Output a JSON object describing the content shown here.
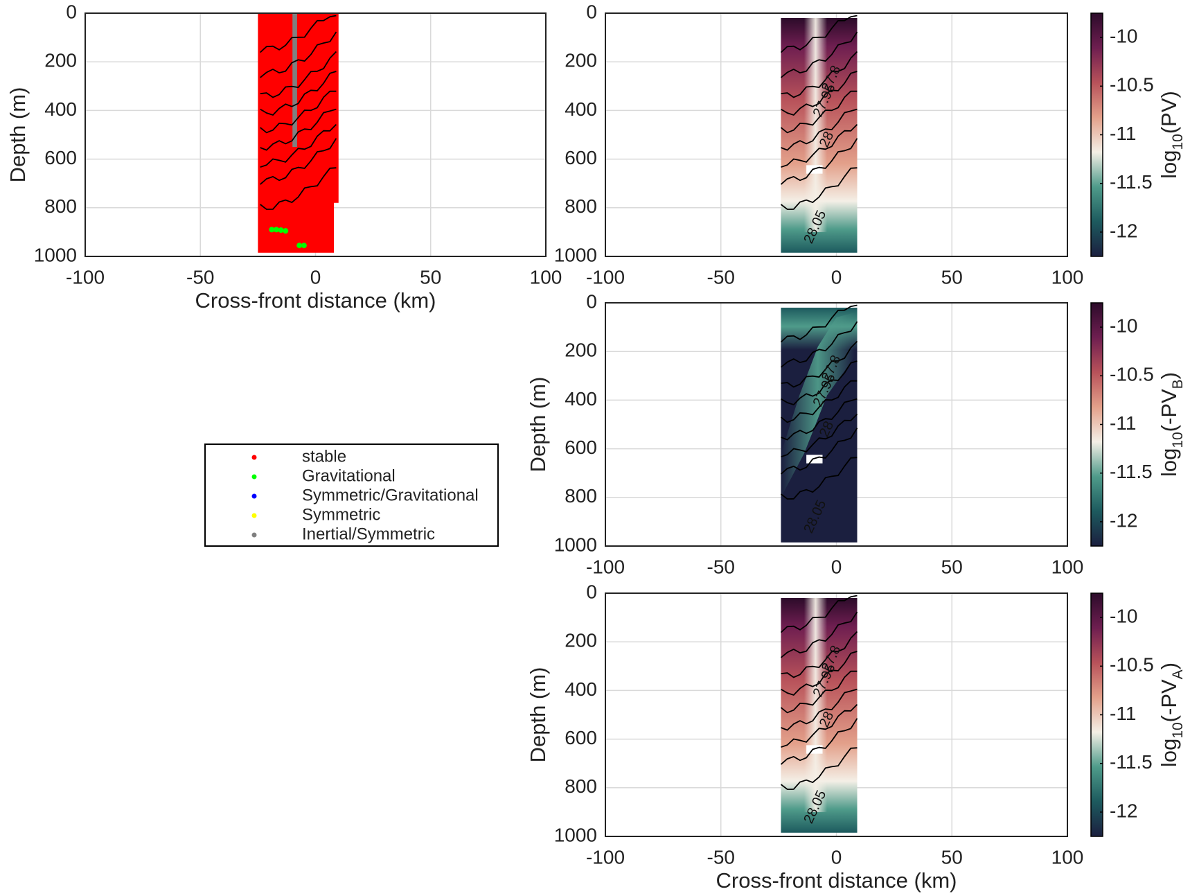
{
  "chart_data": [
    {
      "type": "scatter",
      "xlim": [
        -100,
        100
      ],
      "ylim": [
        0,
        1000
      ],
      "yreverse": true,
      "xticks": [
        -100,
        -50,
        0,
        50,
        100
      ],
      "yticks": [
        0,
        200,
        400,
        600,
        800,
        1000
      ],
      "grid": true,
      "xlabel": "Cross-front distance (km)",
      "ylabel": "Depth (m)",
      "legend": "below",
      "series": [
        {
          "name": "stable",
          "color": "#ff0000",
          "shape": "region",
          "x": [
            -25,
            10,
            10,
            8,
            8,
            -25
          ],
          "y": [
            0,
            0,
            780,
            780,
            985,
            985
          ]
        },
        {
          "name": "Gravitational",
          "color": "#00ff00",
          "x": [
            -19,
            -17,
            -15,
            -13,
            -7,
            -5
          ],
          "y": [
            890,
            890,
            892,
            895,
            955,
            955
          ]
        },
        {
          "name": "Symmetric/Gravitational",
          "color": "#0000ff",
          "x": [],
          "y": []
        },
        {
          "name": "Symmetric",
          "color": "#ffff00",
          "x": [],
          "y": []
        },
        {
          "name": "Inertial/Symmetric",
          "color": "#808080",
          "shape": "region",
          "x": [
            -10,
            -8,
            -8,
            -10
          ],
          "y": [
            0,
            0,
            550,
            550
          ]
        }
      ]
    },
    {
      "type": "heatmap",
      "xlim": [
        -100,
        100
      ],
      "ylim": [
        0,
        1000
      ],
      "yreverse": true,
      "xticks": [
        -100,
        -50,
        0,
        50,
        100
      ],
      "yticks": [
        0,
        200,
        400,
        600,
        800,
        1000
      ],
      "grid": true,
      "field_x": [
        -24,
        9
      ],
      "field_depth": [
        20,
        985
      ],
      "clim": [
        -12.25,
        -9.75
      ],
      "cticks": [
        -12,
        -11.5,
        -11,
        -10.5,
        -10
      ],
      "colormap": [
        "#1b1f3f",
        "#1d5a5e",
        "#4f9b8a",
        "#f4efe6",
        "#e3a08a",
        "#b8525a",
        "#6e1e50",
        "#2c0b2a"
      ],
      "colorbar_label": [
        {
          "text": "log"
        },
        {
          "text": "10",
          "sub": true
        },
        {
          "text": "(PV)"
        }
      ],
      "contour_labels": [
        "27.8",
        "27.95",
        "28",
        "28.05"
      ]
    },
    {
      "type": "heatmap",
      "xlim": [
        -100,
        100
      ],
      "ylim": [
        0,
        1000
      ],
      "yreverse": true,
      "xticks": [
        -100,
        -50,
        0,
        50,
        100
      ],
      "yticks": [
        0,
        200,
        400,
        600,
        800,
        1000
      ],
      "grid": true,
      "ylabel": "Depth (m)",
      "field_x": [
        -24,
        9
      ],
      "field_depth": [
        20,
        985
      ],
      "clim": [
        -12.25,
        -9.75
      ],
      "cticks": [
        -12,
        -11.5,
        -11,
        -10.5,
        -10
      ],
      "colormap": [
        "#1b1f3f",
        "#1d5a5e",
        "#4f9b8a",
        "#f4efe6",
        "#e3a08a",
        "#b8525a",
        "#6e1e50",
        "#2c0b2a"
      ],
      "colorbar_label": [
        {
          "text": "log"
        },
        {
          "text": "10",
          "sub": true
        },
        {
          "text": "(-PV"
        },
        {
          "text": "B",
          "sub": true
        },
        {
          "text": ")"
        }
      ],
      "contour_labels": [
        "27.8",
        "27.95",
        "28",
        "28.05"
      ]
    },
    {
      "type": "heatmap",
      "xlim": [
        -100,
        100
      ],
      "ylim": [
        0,
        1000
      ],
      "yreverse": true,
      "xticks": [
        -100,
        -50,
        0,
        50,
        100
      ],
      "yticks": [
        0,
        200,
        400,
        600,
        800,
        1000
      ],
      "grid": true,
      "xlabel": "Cross-front distance (km)",
      "ylabel": "Depth (m)",
      "field_x": [
        -24,
        9
      ],
      "field_depth": [
        20,
        985
      ],
      "clim": [
        -12.25,
        -9.75
      ],
      "cticks": [
        -12,
        -11.5,
        -11,
        -10.5,
        -10
      ],
      "colormap": [
        "#1b1f3f",
        "#1d5a5e",
        "#4f9b8a",
        "#f4efe6",
        "#e3a08a",
        "#b8525a",
        "#6e1e50",
        "#2c0b2a"
      ],
      "colorbar_label": [
        {
          "text": "log"
        },
        {
          "text": "10",
          "sub": true
        },
        {
          "text": "(-PV"
        },
        {
          "text": "A",
          "sub": true
        },
        {
          "text": ")"
        }
      ],
      "contour_labels": [
        "27.8",
        "27.95",
        "28",
        "28.05"
      ]
    }
  ]
}
